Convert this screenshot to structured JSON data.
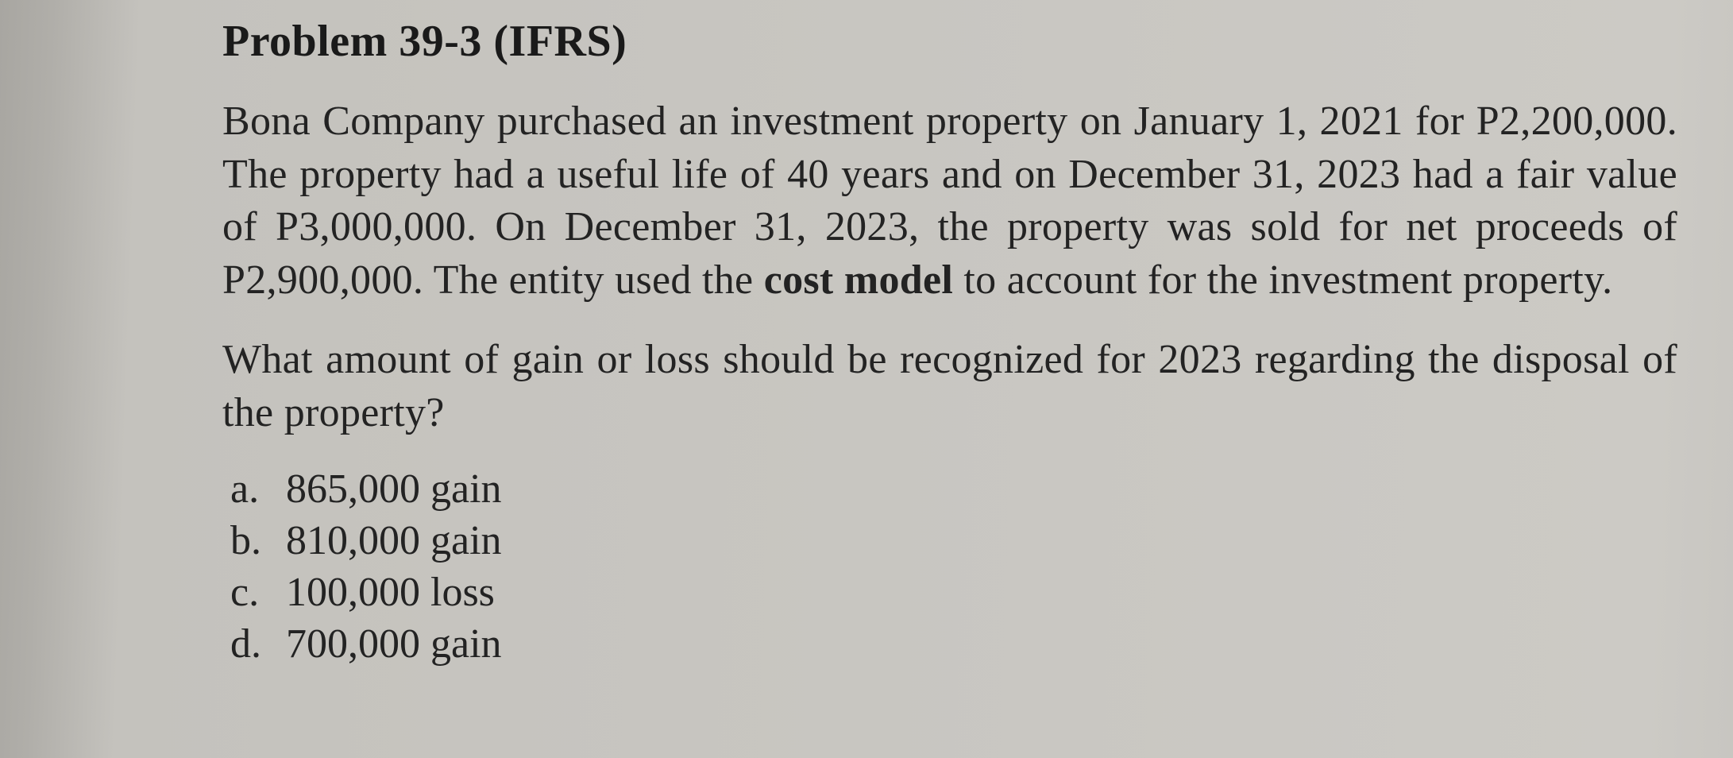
{
  "problem": {
    "title": "Problem 39-3 (IFRS)",
    "body_part1": "Bona Company purchased an investment property on January 1, 2021 for P2,200,000. The property had a useful life of 40 years and on December 31, 2023 had a fair value of P3,000,000. On December 31, 2023, the property was sold for net proceeds of P2,900,000. The entity used the ",
    "body_bold": "cost model",
    "body_part2": " to account for the investment property.",
    "question": "What amount of gain or loss should be recognized for 2023 regarding the disposal of the property?",
    "options": [
      {
        "letter": "a.",
        "text": "865,000 gain"
      },
      {
        "letter": "b.",
        "text": "810,000 gain"
      },
      {
        "letter": "c.",
        "text": "100,000 loss"
      },
      {
        "letter": "d.",
        "text": "700,000 gain"
      }
    ]
  },
  "colors": {
    "background": "#c4c2bd",
    "text": "#1a1a1a"
  },
  "typography": {
    "font_family": "Georgia, Times New Roman, serif",
    "title_fontsize": 56,
    "body_fontsize": 52,
    "title_weight": "bold"
  }
}
